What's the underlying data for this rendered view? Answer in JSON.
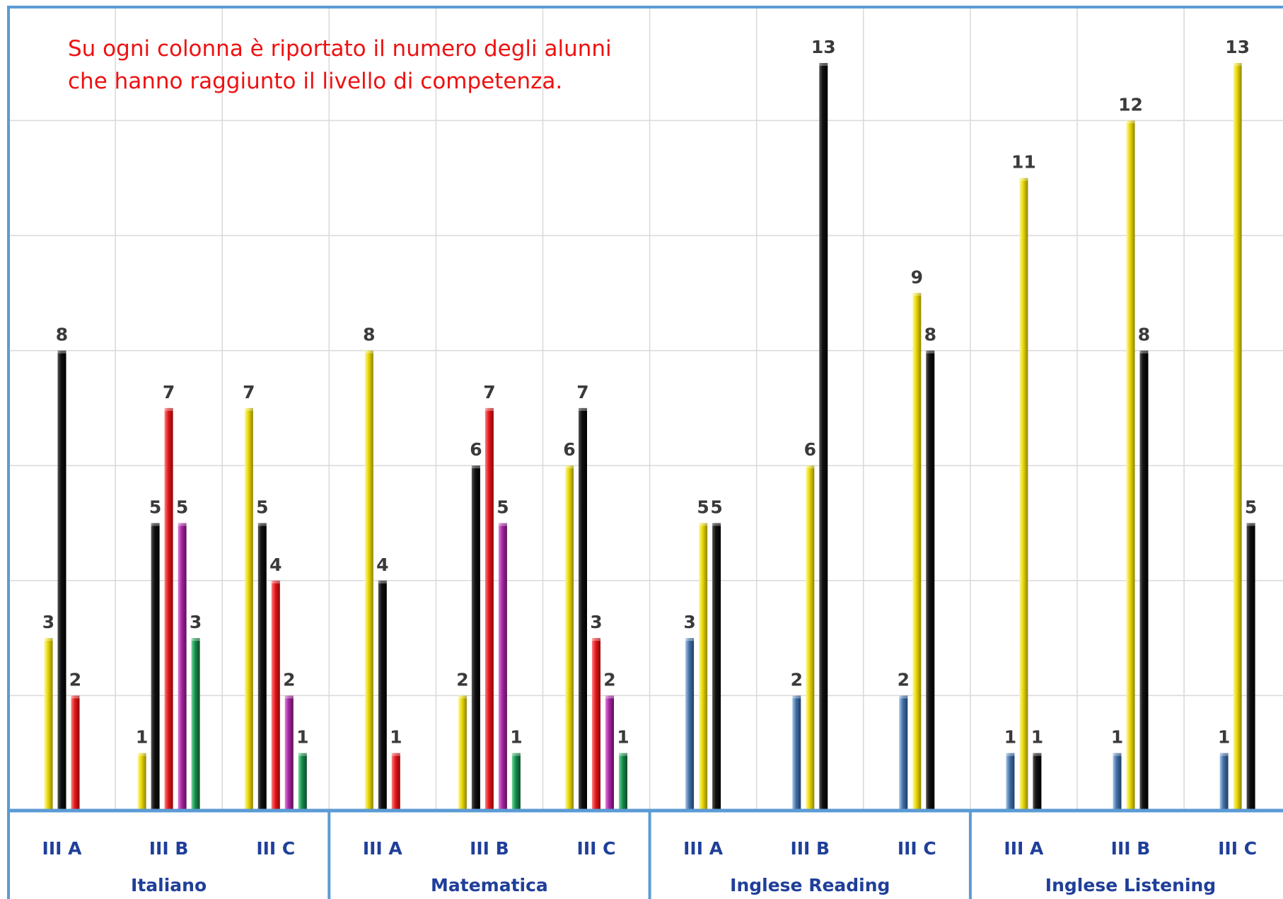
{
  "chart_data": {
    "type": "bar",
    "title": "",
    "xlabel": "",
    "ylabel": "",
    "ylim": [
      0,
      14
    ],
    "grid": true,
    "annotation": [
      "Su ogni colonna è riportato il numero degli alunni",
      "che hanno raggiunto il livello di competenza."
    ],
    "groups": [
      {
        "name": "Italiano",
        "classes": [
          {
            "label": "III A",
            "bars": [
              {
                "color": "yellow",
                "value": 3
              },
              {
                "color": "black",
                "value": 8
              },
              {
                "color": "red",
                "value": 2
              }
            ]
          },
          {
            "label": "III B",
            "bars": [
              {
                "color": "yellow",
                "value": 1
              },
              {
                "color": "black",
                "value": 5
              },
              {
                "color": "red",
                "value": 7
              },
              {
                "color": "magenta",
                "value": 5
              },
              {
                "color": "green",
                "value": 3
              }
            ]
          },
          {
            "label": "III C",
            "bars": [
              {
                "color": "yellow",
                "value": 7
              },
              {
                "color": "black",
                "value": 5
              },
              {
                "color": "red",
                "value": 4
              },
              {
                "color": "magenta",
                "value": 2
              },
              {
                "color": "green",
                "value": 1
              }
            ]
          }
        ]
      },
      {
        "name": "Matematica",
        "classes": [
          {
            "label": "III A",
            "bars": [
              {
                "color": "yellow",
                "value": 8
              },
              {
                "color": "black",
                "value": 4
              },
              {
                "color": "red",
                "value": 1
              }
            ]
          },
          {
            "label": "III B",
            "bars": [
              {
                "color": "yellow",
                "value": 2
              },
              {
                "color": "black",
                "value": 6
              },
              {
                "color": "red",
                "value": 7
              },
              {
                "color": "magenta",
                "value": 5
              },
              {
                "color": "green",
                "value": 1
              }
            ]
          },
          {
            "label": "III  C",
            "bars": [
              {
                "color": "yellow",
                "value": 6
              },
              {
                "color": "black",
                "value": 7
              },
              {
                "color": "red",
                "value": 3
              },
              {
                "color": "magenta",
                "value": 2
              },
              {
                "color": "green",
                "value": 1
              }
            ]
          }
        ]
      },
      {
        "name": "Inglese Reading",
        "classes": [
          {
            "label": "III A",
            "bars": [
              {
                "color": "blue",
                "value": 3
              },
              {
                "color": "yellow",
                "value": 5
              },
              {
                "color": "black",
                "value": 5
              }
            ]
          },
          {
            "label": "III B",
            "bars": [
              {
                "color": "blue",
                "value": 2
              },
              {
                "color": "yellow",
                "value": 6
              },
              {
                "color": "black",
                "value": 13
              }
            ]
          },
          {
            "label": "III C",
            "bars": [
              {
                "color": "blue",
                "value": 2
              },
              {
                "color": "yellow",
                "value": 9
              },
              {
                "color": "black",
                "value": 8
              }
            ]
          }
        ]
      },
      {
        "name": "Inglese Listening",
        "classes": [
          {
            "label": "III A",
            "bars": [
              {
                "color": "blue",
                "value": 1
              },
              {
                "color": "yellow",
                "value": 11
              },
              {
                "color": "black",
                "value": 1
              }
            ]
          },
          {
            "label": "III B",
            "bars": [
              {
                "color": "blue",
                "value": 1
              },
              {
                "color": "yellow",
                "value": 12
              },
              {
                "color": "black",
                "value": 8
              }
            ]
          },
          {
            "label": "III C",
            "bars": [
              {
                "color": "blue",
                "value": 1
              },
              {
                "color": "yellow",
                "value": 13
              },
              {
                "color": "black",
                "value": 5
              }
            ]
          }
        ]
      }
    ],
    "colors": {
      "yellow": "#d8c800",
      "black": "#0a0a0a",
      "red": "#e0161a",
      "magenta": "#a3249f",
      "green": "#168a4a",
      "blue": "#3f6ea5",
      "frame": "#5b9bd5",
      "grid": "#d9d9d9"
    }
  }
}
